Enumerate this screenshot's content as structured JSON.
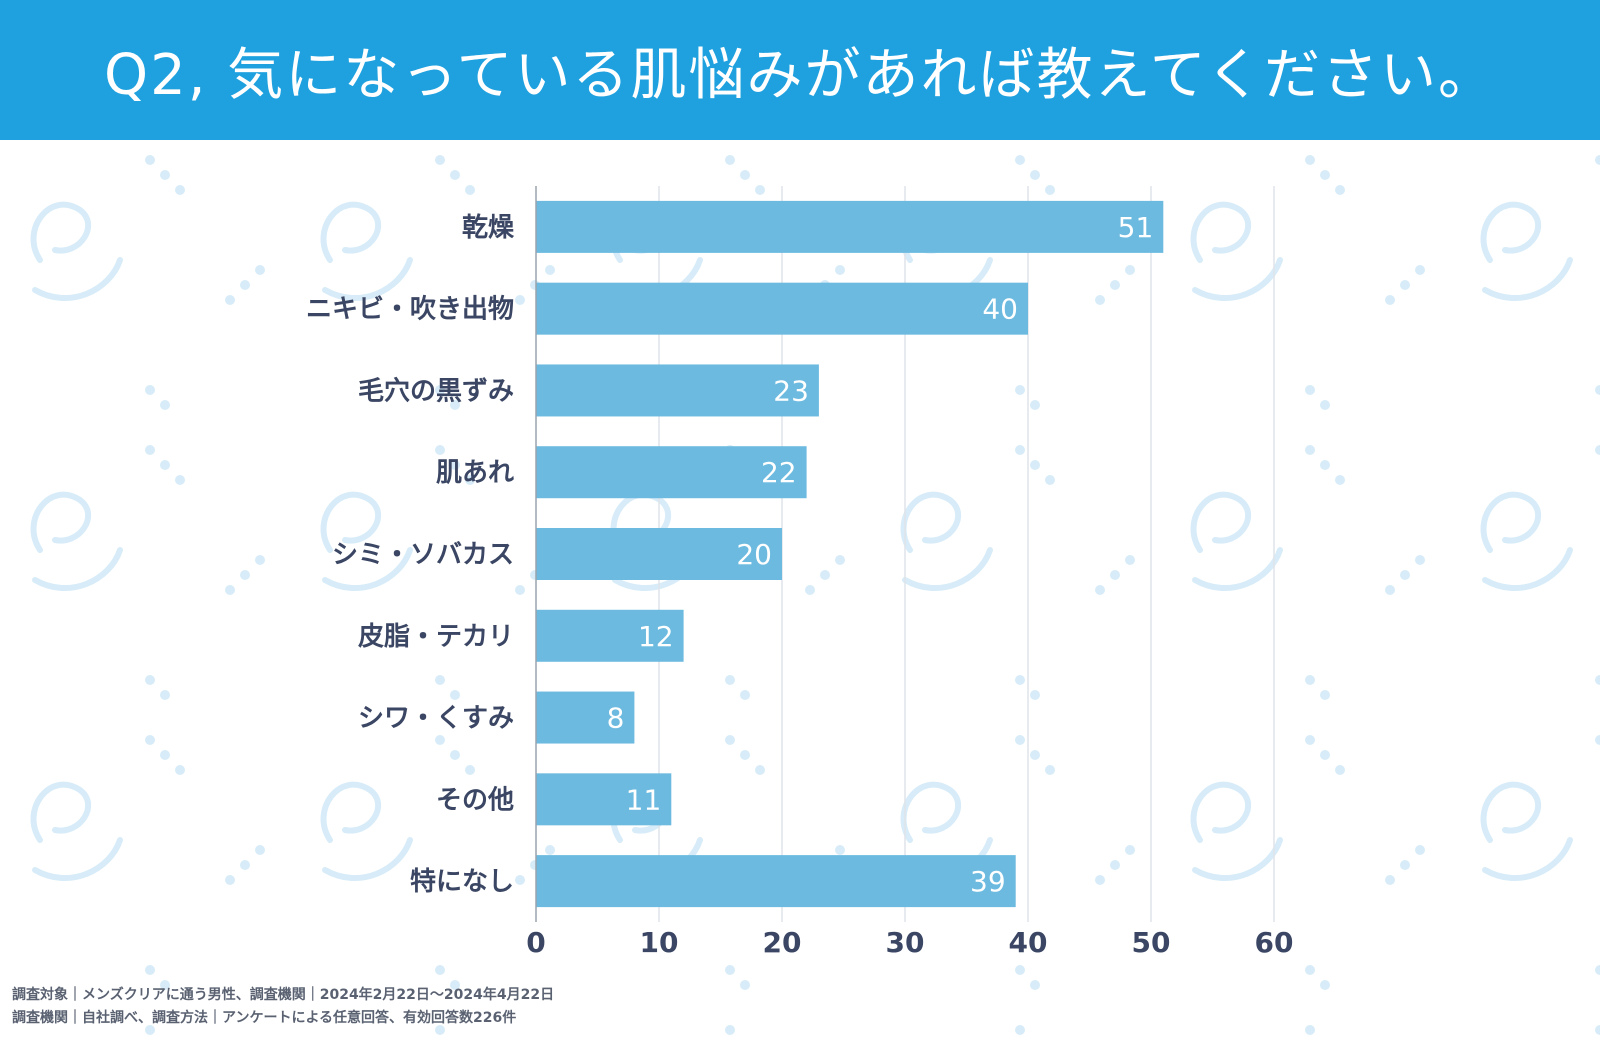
{
  "header": {
    "title": "Q2, 気になっている肌悩みがあれば教えてください。"
  },
  "colors": {
    "header_bg": "#1fa1df",
    "bar": "#6cbadf",
    "text": "#3a4663",
    "grid": "#dfe3e8",
    "pattern": "#d7ecf8"
  },
  "chart_data": {
    "type": "bar",
    "orientation": "horizontal",
    "title": "Q2, 気になっている肌悩みがあれば教えてください。",
    "categories": [
      "乾燥",
      "ニキビ・吹き出物",
      "毛穴の黒ずみ",
      "肌あれ",
      "シミ・ソバカス",
      "皮脂・テカリ",
      "シワ・くすみ",
      "その他",
      "特になし"
    ],
    "values": [
      51,
      40,
      23,
      22,
      20,
      12,
      8,
      11,
      39
    ],
    "xlim": [
      0,
      60
    ],
    "xticks": [
      0,
      10,
      20,
      30,
      40,
      50,
      60
    ],
    "grid": true,
    "data_labels": true,
    "xlabel": "",
    "ylabel": ""
  },
  "footer": {
    "line1": "調査対象｜メンズクリアに通う男性、調査機関｜2024年2月22日〜2024年4月22日",
    "line2": "調査機関｜自社調べ、調査方法｜アンケートによる任意回答、有効回答数226件"
  }
}
